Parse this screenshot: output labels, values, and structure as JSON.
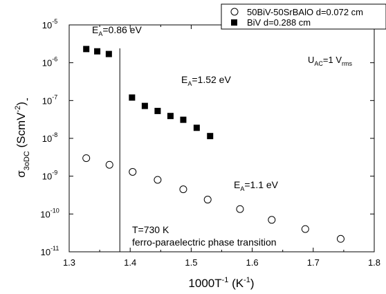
{
  "chart_data": {
    "type": "scatter",
    "title": "",
    "xlabel": "1000T",
    "xlabel_sup": "-1",
    "xlabel_unit": " (K",
    "xlabel_unit_sup": "-1",
    "xlabel_close": ")",
    "ylabel_sigma": "σ",
    "ylabel_prime": "'",
    "ylabel_sub": "3oDC",
    "ylabel_unit": " (ScmV",
    "ylabel_unit_sup": "-2",
    "ylabel_close": ")",
    "xlim": [
      1.3,
      1.8
    ],
    "ylim_log10": [
      -11,
      -5
    ],
    "yscale": "log",
    "grid": false,
    "legend_position": "top-right",
    "x_ticks": [
      {
        "value": 1.3,
        "label": "1.3"
      },
      {
        "value": 1.4,
        "label": "1.4"
      },
      {
        "value": 1.5,
        "label": "1.5"
      },
      {
        "value": 1.6,
        "label": "1.6"
      },
      {
        "value": 1.7,
        "label": "1.7"
      },
      {
        "value": 1.8,
        "label": "1.8"
      }
    ],
    "y_ticks": [
      {
        "exp": -5,
        "base": "10",
        "sup": "-5"
      },
      {
        "exp": -6,
        "base": "10",
        "sup": "-6"
      },
      {
        "exp": -7,
        "base": "10",
        "sup": "-7"
      },
      {
        "exp": -8,
        "base": "10",
        "sup": "-8"
      },
      {
        "exp": -9,
        "base": "10",
        "sup": "-9"
      },
      {
        "exp": -10,
        "base": "10",
        "sup": "-10"
      },
      {
        "exp": -11,
        "base": "10",
        "sup": "-11"
      }
    ],
    "series": [
      {
        "name": "50BiV-50SrBAlO d=0.072 cm",
        "marker": "open-circle",
        "color": "#000000",
        "x": [
          1.328,
          1.366,
          1.404,
          1.445,
          1.487,
          1.527,
          1.58,
          1.632,
          1.687,
          1.745
        ],
        "y": [
          3e-09,
          2e-09,
          1.3e-09,
          8e-10,
          4.5e-10,
          2.4e-10,
          1.35e-10,
          7e-11,
          4e-11,
          2.2e-11
        ]
      },
      {
        "name": "BiV d=0.288 cm",
        "marker": "filled-square",
        "color": "#000000",
        "x": [
          1.328,
          1.346,
          1.365,
          1.403,
          1.424,
          1.445,
          1.466,
          1.487,
          1.509,
          1.531
        ],
        "y": [
          2.3e-06,
          2e-06,
          1.7e-06,
          1.2e-07,
          7.2e-08,
          5.3e-08,
          3.9e-08,
          3.1e-08,
          1.9e-08,
          1.15e-08
        ]
      }
    ],
    "transition_line": {
      "x": 1.383
    },
    "annotations": {
      "ea1": {
        "pre": "E",
        "sub": "A",
        "post": "=0.86 eV"
      },
      "ea2": {
        "pre": "E",
        "sub": "A",
        "post": "=1.52 eV"
      },
      "ea3": {
        "pre": "E",
        "sub": "A",
        "post": "=1.1 eV"
      },
      "uac": {
        "pre": "U",
        "sub": "AC",
        "mid": "=1 V",
        "sub2": "rms"
      },
      "transition_temp": "T=730 K",
      "transition_desc": "ferro-paraelectric phase transition"
    }
  }
}
